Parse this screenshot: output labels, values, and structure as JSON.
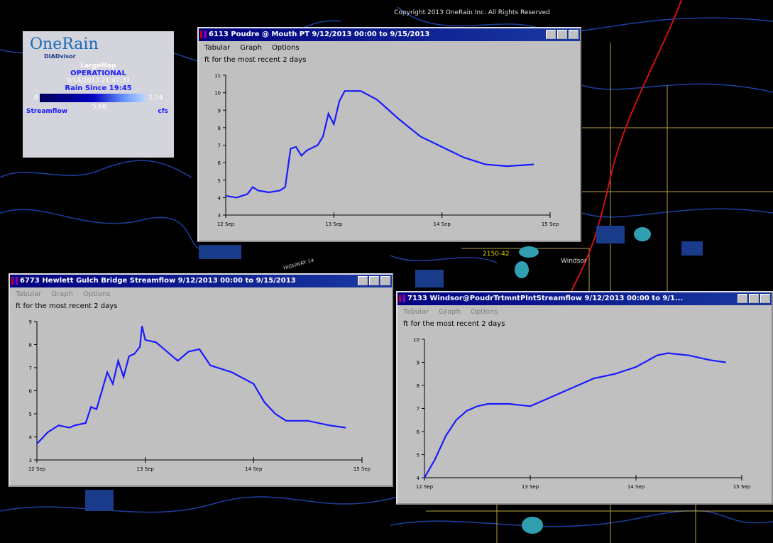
{
  "copyright": "Copyright 2013 OneRain Inc. All Rights Reserved",
  "legend_panel": {
    "logo": "OneRain",
    "logo_sub": "DIADvisor",
    "map_name": "LargeMap",
    "status": "OPERATIONAL",
    "timestamp": "9/14/2013 21:47:37",
    "rain_label": "Rain Since 19:45",
    "scale_min": "0",
    "scale_max": "2.24",
    "streamflow_label": "Streamflow",
    "streamflow_value": "5.66",
    "streamflow_unit": "cfs"
  },
  "map_labels": [
    "2150-42",
    "Windsor",
    "HIGHWAY 14"
  ],
  "windows": [
    {
      "menu": [
        "Tabular",
        "Graph",
        "Options"
      ]
    },
    {
      "menu": [
        "Tabular",
        "Graph",
        "Options"
      ]
    },
    {
      "menu": [
        "Tabular",
        "Graph",
        "Options"
      ]
    }
  ],
  "chart_data": [
    {
      "type": "line",
      "title": "6113 Poudre @ Mouth PT 9/12/2013 00:00 to 9/15/2013",
      "subtitle": "ft for the most recent 2 days",
      "color": "#1a1aff",
      "x": [
        0,
        0.1,
        0.2,
        0.25,
        0.3,
        0.4,
        0.5,
        0.55,
        0.6,
        0.65,
        0.7,
        0.75,
        0.85,
        0.9,
        0.95,
        1.0,
        1.05,
        1.1,
        1.25,
        1.4,
        1.6,
        1.8,
        2.0,
        2.2,
        2.4,
        2.6,
        2.85
      ],
      "values": [
        4.1,
        4.0,
        4.2,
        4.6,
        4.4,
        4.3,
        4.4,
        4.6,
        6.8,
        6.9,
        6.4,
        6.7,
        7.0,
        7.5,
        8.8,
        8.2,
        9.5,
        10.1,
        10.1,
        9.6,
        8.5,
        7.5,
        6.9,
        6.3,
        5.9,
        5.8,
        5.9
      ],
      "xlim": [
        0,
        3
      ],
      "ylim": [
        3,
        11
      ],
      "yticks": [
        3,
        4,
        5,
        6,
        7,
        8,
        9,
        10,
        11
      ],
      "xticks": [
        {
          "value": 0,
          "label": "12 Sep"
        },
        {
          "value": 1,
          "label": "13 Sep"
        },
        {
          "value": 2,
          "label": "14 Sep"
        },
        {
          "value": 3,
          "label": "15 Sep"
        }
      ]
    },
    {
      "type": "line",
      "title": "6773 Hewlett Gulch Bridge Streamflow 9/12/2013 00:00 to 9/15/2013",
      "subtitle": "ft for the most recent 2 days",
      "color": "#1a1aff",
      "x": [
        0,
        0.1,
        0.2,
        0.3,
        0.35,
        0.45,
        0.5,
        0.55,
        0.6,
        0.65,
        0.7,
        0.75,
        0.8,
        0.85,
        0.9,
        0.95,
        0.97,
        1.0,
        1.1,
        1.2,
        1.3,
        1.4,
        1.5,
        1.6,
        1.8,
        2.0,
        2.1,
        2.2,
        2.3,
        2.5,
        2.7,
        2.85
      ],
      "values": [
        3.7,
        4.2,
        4.5,
        4.4,
        4.5,
        4.6,
        5.3,
        5.2,
        6.0,
        6.8,
        6.3,
        7.3,
        6.6,
        7.5,
        7.6,
        7.9,
        8.8,
        8.2,
        8.1,
        7.7,
        7.3,
        7.7,
        7.8,
        7.1,
        6.8,
        6.3,
        5.5,
        5.0,
        4.7,
        4.7,
        4.5,
        4.4
      ],
      "xlim": [
        0,
        3
      ],
      "ylim": [
        3,
        9
      ],
      "yticks": [
        3,
        4,
        5,
        6,
        7,
        8,
        9
      ],
      "xticks": [
        {
          "value": 0,
          "label": "12 Sep"
        },
        {
          "value": 1,
          "label": "13 Sep"
        },
        {
          "value": 2,
          "label": "14 Sep"
        },
        {
          "value": 3,
          "label": "15 Sep"
        }
      ]
    },
    {
      "type": "line",
      "title": "7133 Windsor@PoudrTrtmntPlntStreamflow 9/12/2013 00:00 to 9/1...",
      "subtitle": "ft for the most recent 2 days",
      "color": "#1a1aff",
      "x": [
        0,
        0.1,
        0.2,
        0.3,
        0.4,
        0.5,
        0.6,
        0.8,
        1.0,
        1.2,
        1.4,
        1.6,
        1.8,
        2.0,
        2.2,
        2.3,
        2.5,
        2.7,
        2.85
      ],
      "values": [
        4.0,
        4.8,
        5.8,
        6.5,
        6.9,
        7.1,
        7.2,
        7.2,
        7.1,
        7.5,
        7.9,
        8.3,
        8.5,
        8.8,
        9.3,
        9.4,
        9.3,
        9.1,
        9.0
      ],
      "xlim": [
        0,
        3
      ],
      "ylim": [
        4,
        10
      ],
      "yticks": [
        4,
        5,
        6,
        7,
        8,
        9,
        10
      ],
      "xticks": [
        {
          "value": 0,
          "label": "12 Sep"
        },
        {
          "value": 1,
          "label": "13 Sep"
        },
        {
          "value": 2,
          "label": "14 Sep"
        },
        {
          "value": 3,
          "label": "15 Sep"
        }
      ]
    }
  ]
}
